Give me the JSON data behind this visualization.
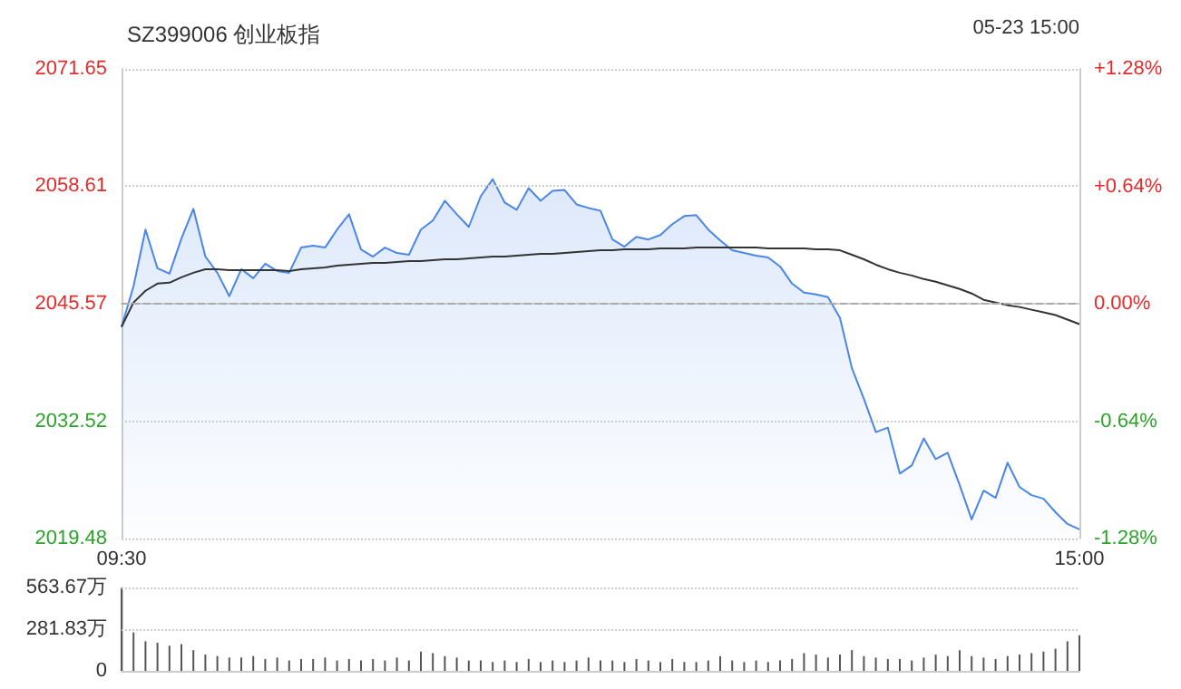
{
  "chart_data": [
    {
      "type": "area",
      "title": "SZ399006 创业板指",
      "annotations": [
        "05-23 15:00"
      ],
      "categories": [
        "09:30",
        null,
        null,
        null,
        null,
        null,
        null,
        null,
        null,
        null,
        null,
        null,
        null,
        null,
        null,
        null,
        null,
        null,
        null,
        null,
        null,
        null,
        null,
        null,
        null,
        null,
        null,
        null,
        null,
        null,
        null,
        null,
        null,
        null,
        null,
        null,
        null,
        null,
        null,
        null,
        null,
        null,
        null,
        null,
        null,
        null,
        null,
        null,
        null,
        null,
        null,
        null,
        null,
        null,
        null,
        null,
        null,
        null,
        null,
        null,
        null,
        null,
        null,
        null,
        null,
        null,
        null,
        null,
        null,
        null,
        null,
        null,
        null,
        null,
        null,
        null,
        null,
        null,
        null,
        null,
        "15:00"
      ],
      "ylim": [
        2019.48,
        2071.65
      ],
      "yticks": [
        2019.48,
        2032.52,
        2045.57,
        2058.61,
        2071.65
      ],
      "y2lim": [
        -1.28,
        1.28
      ],
      "y2ticks": [
        {
          "value": -1.28,
          "label": "-1.28%"
        },
        {
          "value": -0.64,
          "label": "-0.64%"
        },
        {
          "value": 0,
          "label": "0.00%"
        },
        {
          "value": 0.64,
          "label": "+0.64%"
        },
        {
          "value": 1.28,
          "label": "+1.28%"
        }
      ],
      "grid": "y",
      "marker": "none",
      "ref_lines": [
        {
          "axis": "y",
          "value": 2045.57,
          "line_style": "dashed",
          "color": "#aaaaaa"
        }
      ],
      "series": [
        {
          "color": "#4a86e8",
          "values": [
            2043.0,
            2047.5,
            2053.8,
            2049.5,
            2048.9,
            2052.8,
            2056.1,
            2050.8,
            2049.0,
            2046.4,
            2049.4,
            2048.4,
            2050.0,
            2049.2,
            2049.0,
            2051.8,
            2052.0,
            2051.8,
            2053.8,
            2055.5,
            2051.6,
            2050.8,
            2051.8,
            2051.2,
            2051.0,
            2053.8,
            2054.8,
            2057.0,
            2055.5,
            2054.1,
            2057.5,
            2059.4,
            2056.8,
            2056.0,
            2058.4,
            2057.0,
            2058.1,
            2058.2,
            2056.6,
            2056.2,
            2055.9,
            2052.7,
            2051.9,
            2053.0,
            2052.7,
            2053.2,
            2054.4,
            2055.3,
            2055.4,
            2053.8,
            2052.6,
            2051.5,
            2051.2,
            2050.9,
            2050.7,
            2049.7,
            2047.8,
            2046.8,
            2046.6,
            2046.3,
            2044.0,
            2038.4,
            2035.0,
            2031.3,
            2031.8,
            2026.7,
            2027.6,
            2030.6,
            2028.3,
            2029.0,
            2025.4,
            2021.6,
            2024.8,
            2024.0,
            2027.9,
            2025.2,
            2024.3,
            2023.9,
            2022.4,
            2021.1,
            2020.5
          ]
        },
        {
          "type": "line",
          "color": "#333333",
          "values": [
            2043.0,
            2045.7,
            2047.0,
            2047.8,
            2047.9,
            2048.5,
            2049.0,
            2049.4,
            2049.4,
            2049.3,
            2049.3,
            2049.3,
            2049.3,
            2049.3,
            2049.2,
            2049.4,
            2049.5,
            2049.6,
            2049.8,
            2049.9,
            2050.0,
            2050.1,
            2050.1,
            2050.2,
            2050.3,
            2050.3,
            2050.4,
            2050.5,
            2050.5,
            2050.6,
            2050.7,
            2050.8,
            2050.8,
            2050.9,
            2051.0,
            2051.1,
            2051.1,
            2051.2,
            2051.3,
            2051.4,
            2051.5,
            2051.5,
            2051.6,
            2051.6,
            2051.6,
            2051.7,
            2051.7,
            2051.7,
            2051.8,
            2051.8,
            2051.8,
            2051.8,
            2051.8,
            2051.8,
            2051.7,
            2051.7,
            2051.7,
            2051.7,
            2051.6,
            2051.6,
            2051.5,
            2051.0,
            2050.5,
            2049.9,
            2049.4,
            2049.0,
            2048.7,
            2048.3,
            2048.0,
            2047.6,
            2047.2,
            2046.7,
            2046.0,
            2045.7,
            2045.4,
            2045.2,
            2044.9,
            2044.6,
            2044.3,
            2043.8,
            2043.3
          ]
        }
      ]
    },
    {
      "type": "bar",
      "categories": [
        null,
        null,
        null,
        null,
        null,
        null,
        null,
        null,
        null,
        null,
        null,
        null,
        null,
        null,
        null,
        null,
        null,
        null,
        null,
        null,
        null,
        null,
        null,
        null,
        null,
        null,
        null,
        null,
        null,
        null,
        null,
        null,
        null,
        null,
        null,
        null,
        null,
        null,
        null,
        null,
        null,
        null,
        null,
        null,
        null,
        null,
        null,
        null,
        null,
        null,
        null,
        null,
        null,
        null,
        null,
        null,
        null,
        null,
        null,
        null,
        null,
        null,
        null,
        null,
        null,
        null,
        null,
        null,
        null,
        null,
        null,
        null,
        null,
        null,
        null,
        null,
        null,
        null,
        null,
        null,
        null
      ],
      "ylim": [
        0,
        563.67
      ],
      "yticks": [
        0,
        {
          "value": 281.83,
          "label": "281.83万"
        },
        {
          "value": 563.67,
          "label": "563.67万"
        }
      ],
      "grid": "y",
      "color": "#555555",
      "values": [
        560,
        260,
        200,
        190,
        170,
        180,
        140,
        110,
        100,
        90,
        90,
        100,
        80,
        90,
        70,
        80,
        80,
        90,
        70,
        80,
        70,
        80,
        70,
        90,
        70,
        130,
        120,
        100,
        90,
        70,
        70,
        60,
        70,
        60,
        80,
        60,
        70,
        60,
        70,
        90,
        70,
        70,
        60,
        80,
        70,
        60,
        80,
        60,
        60,
        70,
        100,
        70,
        60,
        70,
        60,
        70,
        80,
        120,
        110,
        90,
        110,
        140,
        100,
        90,
        80,
        80,
        70,
        90,
        110,
        100,
        140,
        100,
        90,
        80,
        100,
        110,
        120,
        130,
        150,
        200,
        240
      ]
    }
  ]
}
